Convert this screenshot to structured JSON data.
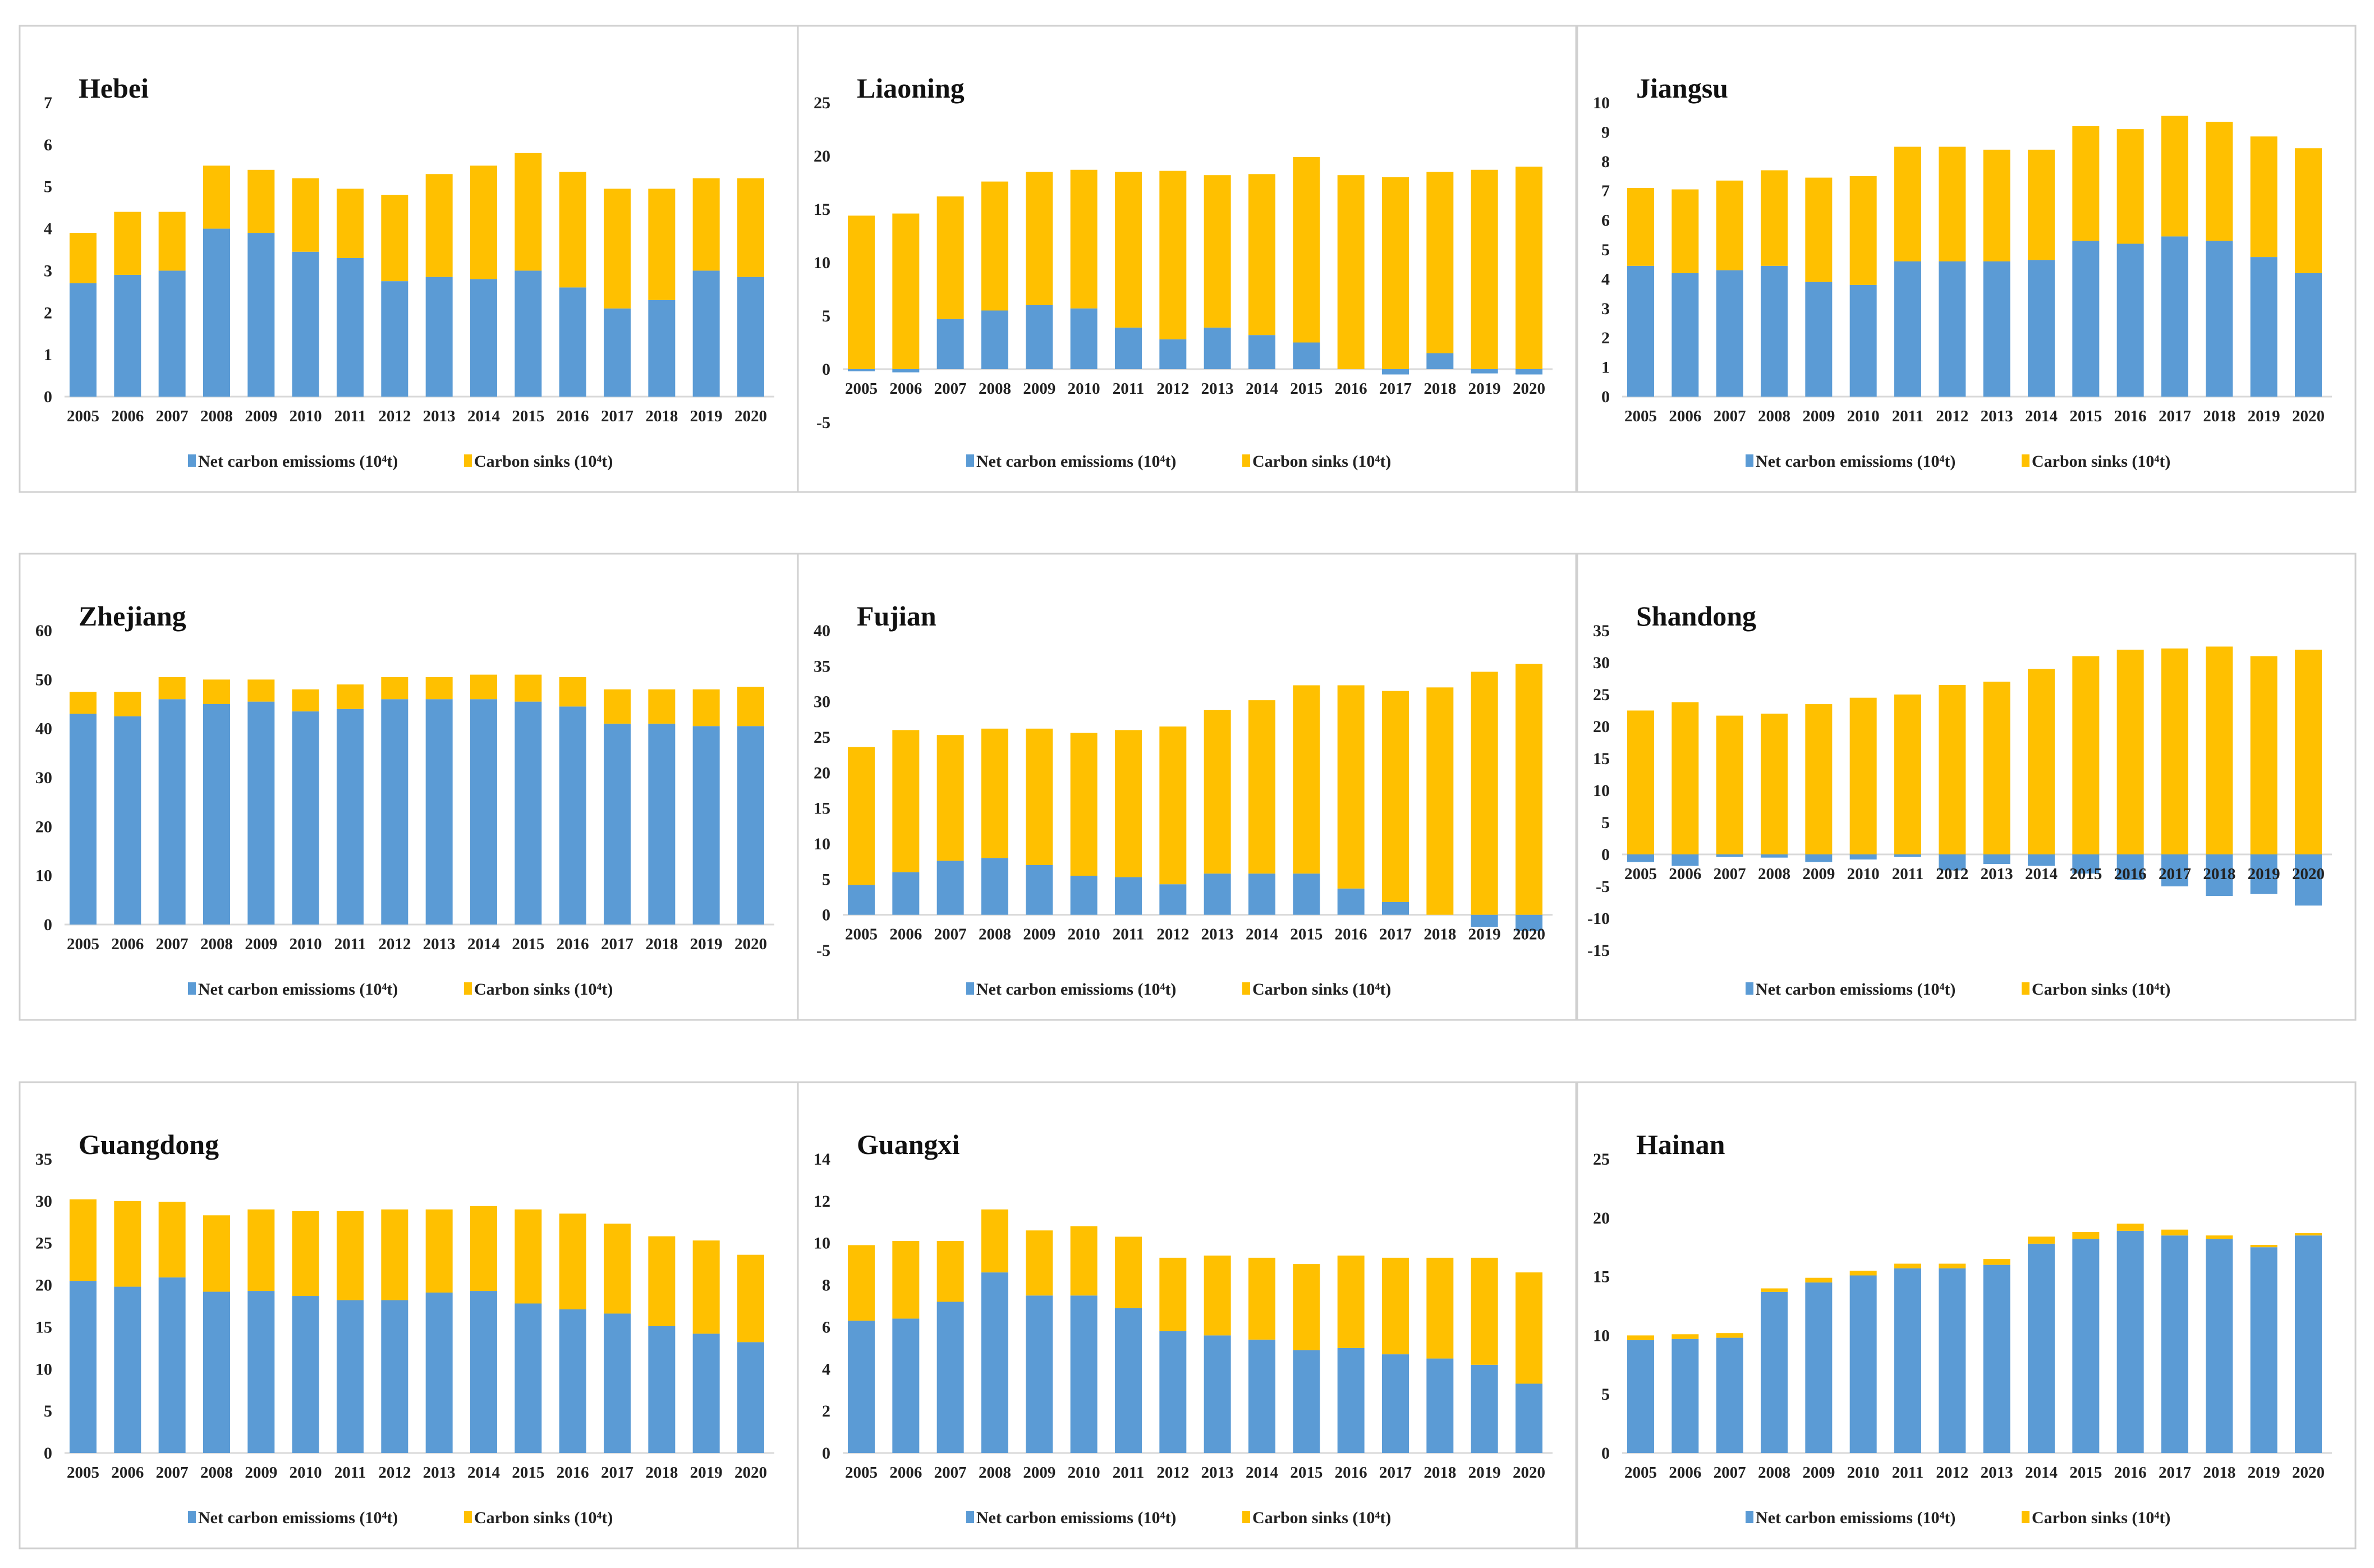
{
  "colors": {
    "net": "#5B9BD5",
    "sink": "#FFC000",
    "border": "#d0d0d0",
    "axis": "#d9d9d9"
  },
  "chart_data": [
    {
      "type": "bar",
      "stacked": true,
      "title": "Hebei",
      "ylim": [
        0,
        7
      ],
      "ystep": 1,
      "categories": [
        "2005",
        "2006",
        "2007",
        "2008",
        "2009",
        "2010",
        "2011",
        "2012",
        "2013",
        "2014",
        "2015",
        "2016",
        "2017",
        "2018",
        "2019",
        "2020"
      ],
      "series": [
        {
          "name": "Net carbon emissioms (10⁴t)",
          "values": [
            2.7,
            2.9,
            3.0,
            4.0,
            3.9,
            3.45,
            3.3,
            2.75,
            2.85,
            2.8,
            3.0,
            2.6,
            2.1,
            2.3,
            3.0,
            2.85
          ]
        },
        {
          "name": "Carbon sinks (10⁴t)",
          "values": [
            1.2,
            1.5,
            1.4,
            1.5,
            1.5,
            1.75,
            1.65,
            2.05,
            2.45,
            2.7,
            2.8,
            2.75,
            2.85,
            2.65,
            2.2,
            2.35
          ]
        }
      ],
      "legend": "bottom"
    },
    {
      "type": "bar",
      "stacked": true,
      "title": "Liaoning",
      "ylim": [
        -5,
        25
      ],
      "ystep": 5,
      "categories": [
        "2005",
        "2006",
        "2007",
        "2008",
        "2009",
        "2010",
        "2011",
        "2012",
        "2013",
        "2014",
        "2015",
        "2016",
        "2017",
        "2018",
        "2019",
        "2020"
      ],
      "series": [
        {
          "name": "Net carbon emissioms (10⁴t)",
          "values": [
            -0.2,
            -0.3,
            4.7,
            5.5,
            6.0,
            5.7,
            3.9,
            2.8,
            3.9,
            3.2,
            2.5,
            0,
            -0.5,
            1.5,
            -0.4,
            -0.5
          ]
        },
        {
          "name": "Carbon sinks (10⁴t)",
          "values": [
            14.4,
            14.6,
            11.5,
            12.1,
            12.5,
            13.0,
            14.6,
            15.8,
            14.3,
            15.1,
            17.4,
            18.2,
            18.0,
            17.0,
            18.7,
            19.0
          ]
        }
      ],
      "legend": "bottom"
    },
    {
      "type": "bar",
      "stacked": true,
      "title": "Jiangsu",
      "ylim": [
        0,
        10
      ],
      "ystep": 1,
      "categories": [
        "2005",
        "2006",
        "2007",
        "2008",
        "2009",
        "2010",
        "2011",
        "2012",
        "2013",
        "2014",
        "2015",
        "2016",
        "2017",
        "2018",
        "2019",
        "2020"
      ],
      "series": [
        {
          "name": "Net carbon emissioms (10⁴t)",
          "values": [
            4.45,
            4.2,
            4.3,
            4.45,
            3.9,
            3.8,
            4.6,
            4.6,
            4.6,
            4.65,
            5.3,
            5.2,
            5.45,
            5.3,
            4.75,
            4.2
          ]
        },
        {
          "name": "Carbon sinks (10⁴t)",
          "values": [
            2.65,
            2.85,
            3.05,
            3.25,
            3.55,
            3.7,
            3.9,
            3.9,
            3.8,
            3.75,
            3.9,
            3.9,
            4.1,
            4.05,
            4.1,
            4.25
          ]
        }
      ],
      "legend": "bottom"
    },
    {
      "type": "bar",
      "stacked": true,
      "title": "Zhejiang",
      "ylim": [
        0,
        60
      ],
      "ystep": 10,
      "categories": [
        "2005",
        "2006",
        "2007",
        "2008",
        "2009",
        "2010",
        "2011",
        "2012",
        "2013",
        "2014",
        "2015",
        "2016",
        "2017",
        "2018",
        "2019",
        "2020"
      ],
      "series": [
        {
          "name": "Net carbon emissioms (10⁴t)",
          "values": [
            43,
            42.5,
            46,
            45,
            45.5,
            43.5,
            44,
            46,
            46,
            46,
            45.5,
            44.5,
            41,
            41,
            40.5,
            40.5
          ]
        },
        {
          "name": "Carbon sinks (10⁴t)",
          "values": [
            4.5,
            5,
            4.5,
            5,
            4.5,
            4.5,
            5,
            4.5,
            4.5,
            5,
            5.5,
            6,
            7,
            7,
            7.5,
            8
          ]
        }
      ],
      "legend": "bottom"
    },
    {
      "type": "bar",
      "stacked": true,
      "title": "Fujian",
      "ylim": [
        -5,
        40
      ],
      "ystep": 5,
      "categories": [
        "2005",
        "2006",
        "2007",
        "2008",
        "2009",
        "2010",
        "2011",
        "2012",
        "2013",
        "2014",
        "2015",
        "2016",
        "2017",
        "2018",
        "2019",
        "2020"
      ],
      "series": [
        {
          "name": "Net carbon emissioms (10⁴t)",
          "values": [
            4.2,
            6.0,
            7.6,
            8.0,
            7.0,
            5.5,
            5.3,
            4.3,
            5.8,
            5.8,
            5.8,
            3.7,
            1.8,
            0,
            -1.7,
            -2.3
          ]
        },
        {
          "name": "Carbon sinks (10⁴t)",
          "values": [
            19.4,
            20,
            17.7,
            18.2,
            19.2,
            20.1,
            20.7,
            22.2,
            23,
            24.4,
            26.5,
            28.6,
            29.7,
            32,
            34.2,
            35.3
          ]
        }
      ],
      "legend": "bottom"
    },
    {
      "type": "bar",
      "stacked": true,
      "title": "Shandong",
      "ylim": [
        -15,
        35
      ],
      "ystep": 5,
      "categories": [
        "2005",
        "2006",
        "2007",
        "2008",
        "2009",
        "2010",
        "2011",
        "2012",
        "2013",
        "2014",
        "2015",
        "2016",
        "2017",
        "2018",
        "2019",
        "2020"
      ],
      "series": [
        {
          "name": "Net carbon emissioms (10⁴t)",
          "values": [
            -1.2,
            -1.8,
            -0.4,
            -0.5,
            -1.2,
            -0.8,
            -0.4,
            -2.5,
            -1.5,
            -1.8,
            -3,
            -4,
            -5,
            -6.5,
            -6.2,
            -8
          ]
        },
        {
          "name": "Carbon sinks (10⁴t)",
          "values": [
            22.5,
            23.8,
            21.7,
            22,
            23.5,
            24.5,
            25,
            26.5,
            27,
            29,
            31,
            32,
            32.2,
            32.5,
            31,
            32
          ]
        }
      ],
      "legend": "bottom"
    },
    {
      "type": "bar",
      "stacked": true,
      "title": "Guangdong",
      "ylim": [
        0,
        35
      ],
      "ystep": 5,
      "categories": [
        "2005",
        "2006",
        "2007",
        "2008",
        "2009",
        "2010",
        "2011",
        "2012",
        "2013",
        "2014",
        "2015",
        "2016",
        "2017",
        "2018",
        "2019",
        "2020"
      ],
      "series": [
        {
          "name": "Net carbon emissioms (10⁴t)",
          "values": [
            20.5,
            19.8,
            20.9,
            19.2,
            19.3,
            18.7,
            18.2,
            18.2,
            19.1,
            19.3,
            17.8,
            17.1,
            16.6,
            15.1,
            14.2,
            13.2
          ]
        },
        {
          "name": "Carbon sinks (10⁴t)",
          "values": [
            9.7,
            10.2,
            9.0,
            9.1,
            9.7,
            10.1,
            10.6,
            10.8,
            9.9,
            10.1,
            11.2,
            11.4,
            10.7,
            10.7,
            11.1,
            10.4
          ]
        }
      ],
      "legend": "bottom"
    },
    {
      "type": "bar",
      "stacked": true,
      "title": "Guangxi",
      "ylim": [
        0,
        14
      ],
      "ystep": 2,
      "categories": [
        "2005",
        "2006",
        "2007",
        "2008",
        "2009",
        "2010",
        "2011",
        "2012",
        "2013",
        "2014",
        "2015",
        "2016",
        "2017",
        "2018",
        "2019",
        "2020"
      ],
      "series": [
        {
          "name": "Net carbon emissioms (10⁴t)",
          "values": [
            6.3,
            6.4,
            7.2,
            8.6,
            7.5,
            7.5,
            6.9,
            5.8,
            5.6,
            5.4,
            4.9,
            5.0,
            4.7,
            4.5,
            4.2,
            3.3
          ]
        },
        {
          "name": "Carbon sinks (10⁴t)",
          "values": [
            3.6,
            3.7,
            2.9,
            3.0,
            3.1,
            3.3,
            3.4,
            3.5,
            3.8,
            3.9,
            4.1,
            4.4,
            4.6,
            4.8,
            5.1,
            5.3
          ]
        }
      ],
      "legend": "bottom"
    },
    {
      "type": "bar",
      "stacked": true,
      "title": "Hainan",
      "ylim": [
        0,
        25
      ],
      "ystep": 5,
      "categories": [
        "2005",
        "2006",
        "2007",
        "2008",
        "2009",
        "2010",
        "2011",
        "2012",
        "2013",
        "2014",
        "2015",
        "2016",
        "2017",
        "2018",
        "2019",
        "2020"
      ],
      "series": [
        {
          "name": "Net carbon emissioms (10⁴t)",
          "values": [
            9.6,
            9.7,
            9.8,
            13.7,
            14.5,
            15.1,
            15.7,
            15.7,
            16,
            17.8,
            18.2,
            18.9,
            18.5,
            18.2,
            17.5,
            18.5
          ]
        },
        {
          "name": "Carbon sinks (10⁴t)",
          "values": [
            0.4,
            0.4,
            0.4,
            0.3,
            0.4,
            0.4,
            0.4,
            0.4,
            0.5,
            0.6,
            0.6,
            0.6,
            0.5,
            0.3,
            0.2,
            0.2
          ]
        }
      ],
      "legend": "bottom"
    }
  ]
}
